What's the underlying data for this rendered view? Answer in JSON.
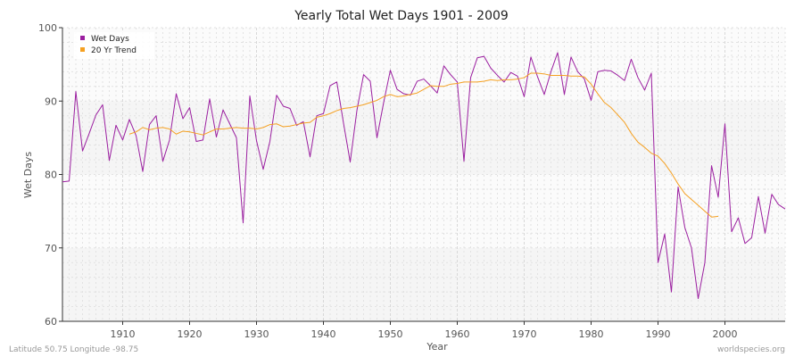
{
  "colors": {
    "wet_days": "#9b1fa0",
    "trend": "#f5a020",
    "band_light": "#f5f5f5",
    "band_white": "#fbfbfb",
    "grid": "#e2e2e2",
    "axis": "#333333"
  },
  "footer": {
    "location": "Latitude 50.75 Longitude -98.75",
    "site": "worldspecies.org"
  },
  "chart_data": {
    "type": "line",
    "title": "Yearly Total Wet Days 1901 - 2009",
    "xlabel": "Year",
    "ylabel": "Wet Days",
    "xlim": [
      1901,
      2009
    ],
    "ylim": [
      60,
      100
    ],
    "x_ticks": [
      1910,
      1920,
      1930,
      1940,
      1950,
      1960,
      1970,
      1980,
      1990,
      2000
    ],
    "y_ticks": [
      60,
      70,
      80,
      90,
      100
    ],
    "grid": true,
    "legend_position": "top-left",
    "series": [
      {
        "name": "Wet Days",
        "color": "#9b1fa0",
        "x_start": 1901,
        "values": [
          79.0,
          79.1,
          91.3,
          83.2,
          85.6,
          88.1,
          89.5,
          81.9,
          86.7,
          84.7,
          87.5,
          85.3,
          80.4,
          86.8,
          88.0,
          81.8,
          84.7,
          91.0,
          87.6,
          89.1,
          84.5,
          84.7,
          90.3,
          85.1,
          88.8,
          86.9,
          85.0,
          73.4,
          90.7,
          84.6,
          80.7,
          84.5,
          90.8,
          89.3,
          89.0,
          86.7,
          87.2,
          82.4,
          88.0,
          88.3,
          92.1,
          92.6,
          87.0,
          81.7,
          88.7,
          93.6,
          92.7,
          85.0,
          89.8,
          94.2,
          91.6,
          91.0,
          90.8,
          92.7,
          93.0,
          92.1,
          91.1,
          94.8,
          93.6,
          92.6,
          81.8,
          93.2,
          95.9,
          96.1,
          94.5,
          93.5,
          92.6,
          93.9,
          93.4,
          90.6,
          96.0,
          93.3,
          90.9,
          94.0,
          96.6,
          90.9,
          96.0,
          94.0,
          93.0,
          90.1,
          94.0,
          94.2,
          94.1,
          93.5,
          92.8,
          95.7,
          93.2,
          91.5,
          93.8,
          68.0,
          71.9,
          64.0,
          78.3,
          72.8,
          70.0,
          63.1,
          68.0,
          81.2,
          76.9,
          86.9,
          72.2,
          74.1,
          70.6,
          71.4,
          77.0,
          72.0,
          77.3,
          75.9,
          75.3
        ]
      },
      {
        "name": "20 Yr Trend",
        "color": "#f5a020",
        "x_start": 1911,
        "values": [
          85.5,
          85.8,
          86.4,
          86.1,
          86.3,
          86.4,
          86.2,
          85.5,
          85.9,
          85.8,
          85.6,
          85.4,
          85.8,
          86.2,
          86.2,
          86.3,
          86.4,
          86.3,
          86.3,
          86.2,
          86.4,
          86.8,
          86.9,
          86.5,
          86.6,
          86.8,
          87.0,
          87.1,
          87.8,
          88.0,
          88.3,
          88.7,
          89.0,
          89.1,
          89.3,
          89.5,
          89.8,
          90.1,
          90.6,
          90.9,
          90.6,
          90.7,
          90.9,
          91.1,
          91.6,
          92.1,
          92.0,
          92.0,
          92.3,
          92.4,
          92.6,
          92.6,
          92.6,
          92.7,
          92.9,
          92.8,
          92.9,
          92.9,
          93.0,
          93.2,
          93.8,
          93.8,
          93.7,
          93.5,
          93.5,
          93.5,
          93.4,
          93.4,
          93.3,
          92.3,
          91.0,
          89.8,
          89.1,
          88.1,
          87.1,
          85.6,
          84.4,
          83.7,
          82.9,
          82.5,
          81.5,
          80.2,
          78.7,
          77.4,
          76.6,
          75.8,
          75.0,
          74.2,
          74.3
        ]
      }
    ]
  }
}
